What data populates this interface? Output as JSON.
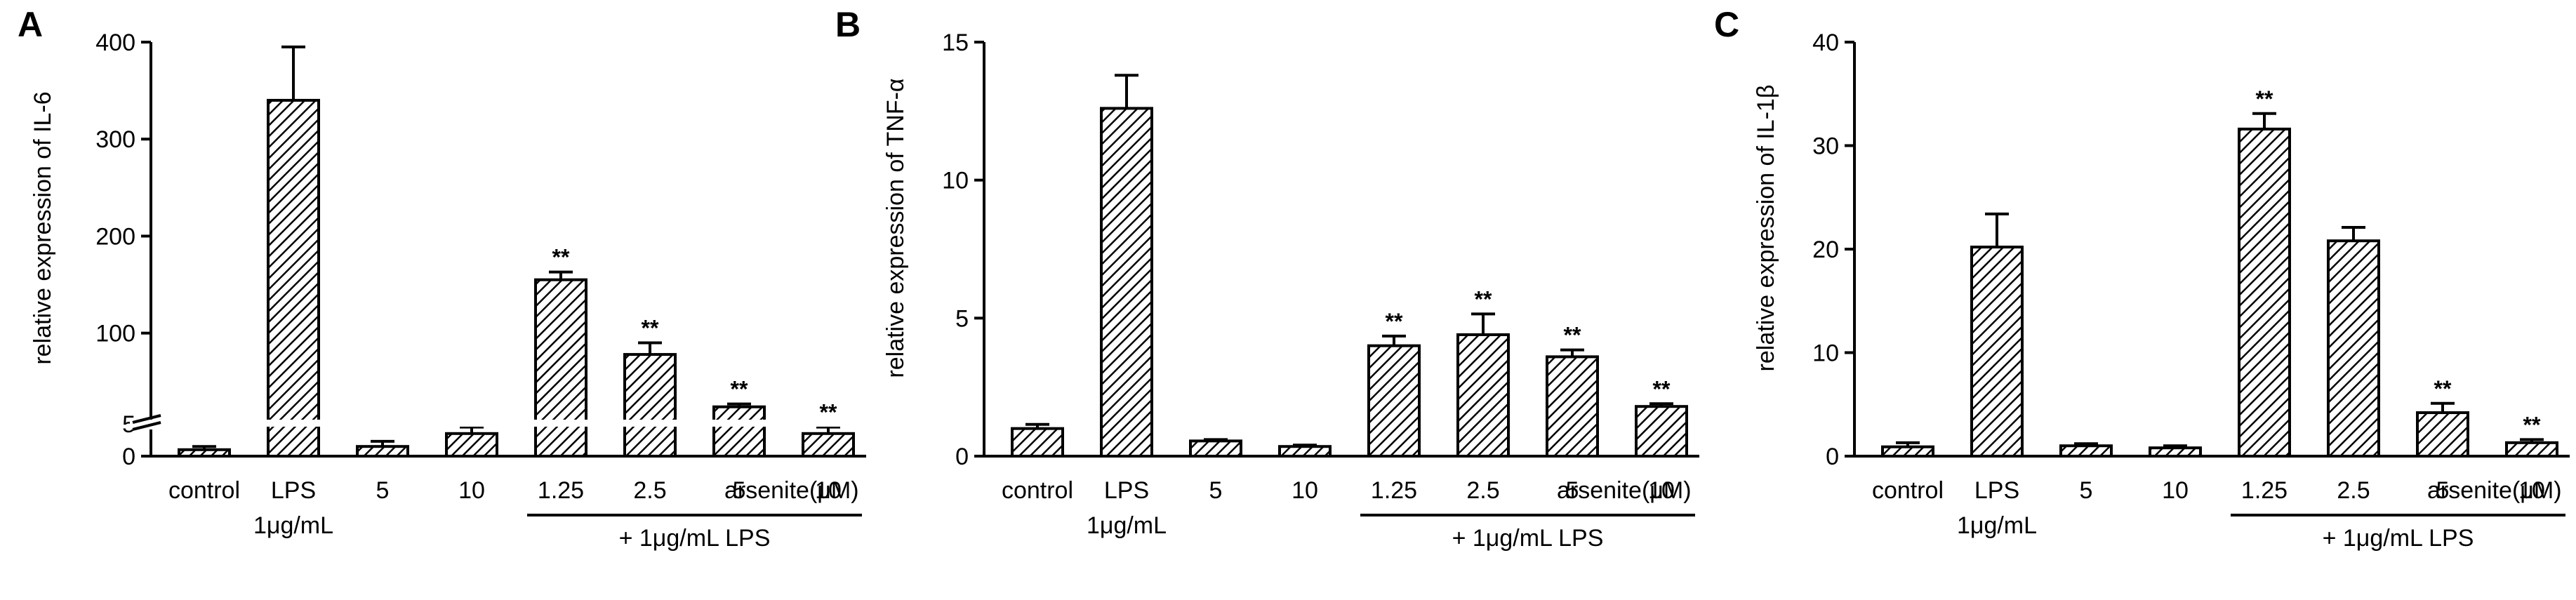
{
  "chart_data": [
    {
      "type": "bar",
      "panel": "A",
      "ylabel": "relative expression of IL-6",
      "categories": [
        "control",
        "LPS",
        "5",
        "10",
        "1.25",
        "2.5",
        "5",
        "10"
      ],
      "values": [
        1,
        340,
        1.5,
        3.5,
        155,
        78,
        24,
        3.5
      ],
      "errors": [
        0.5,
        55,
        0.8,
        1,
        8,
        12,
        3,
        1
      ],
      "significance": [
        "",
        "",
        "",
        "",
        "**",
        "**",
        "**",
        "**"
      ],
      "y_axis_break": {
        "lower_range": [
          0,
          5
        ],
        "upper_range": [
          5,
          400
        ]
      },
      "yticks_lower": [
        "0",
        "5"
      ],
      "yticks_upper": [
        "100",
        "200",
        "300",
        "400"
      ],
      "extra_label": "arsenite(μM)",
      "sub_label": "1μg/mL",
      "group_label": "+ 1μg/mL LPS"
    },
    {
      "type": "bar",
      "panel": "B",
      "ylabel": "relative expression of TNF-α",
      "categories": [
        "control",
        "LPS",
        "5",
        "10",
        "1.25",
        "2.5",
        "5",
        "10"
      ],
      "values": [
        1.0,
        12.6,
        0.55,
        0.35,
        4.0,
        4.4,
        3.6,
        1.8
      ],
      "errors": [
        0.15,
        1.2,
        0.05,
        0.05,
        0.35,
        0.75,
        0.25,
        0.1
      ],
      "significance": [
        "",
        "",
        "",
        "",
        "**",
        "**",
        "**",
        "**"
      ],
      "ylim": [
        0,
        15
      ],
      "yticks": [
        "0",
        "5",
        "10",
        "15"
      ],
      "extra_label": "arsenite(μM)",
      "sub_label": "1μg/mL",
      "group_label": "+ 1μg/mL LPS"
    },
    {
      "type": "bar",
      "panel": "C",
      "ylabel": "relative expression of IL-1β",
      "categories": [
        "control",
        "LPS",
        "5",
        "10",
        "1.25",
        "2.5",
        "5",
        "10"
      ],
      "values": [
        0.9,
        20.2,
        1.0,
        0.8,
        31.6,
        20.8,
        4.2,
        1.3
      ],
      "errors": [
        0.4,
        3.2,
        0.2,
        0.2,
        1.5,
        1.3,
        0.9,
        0.3
      ],
      "significance": [
        "",
        "",
        "",
        "",
        "**",
        "",
        "**",
        "**"
      ],
      "ylim": [
        0,
        40
      ],
      "yticks": [
        "0",
        "10",
        "20",
        "30",
        "40"
      ],
      "extra_label": "arsenite(μM)",
      "sub_label": "1μg/mL",
      "group_label": "+ 1μg/mL LPS"
    }
  ]
}
